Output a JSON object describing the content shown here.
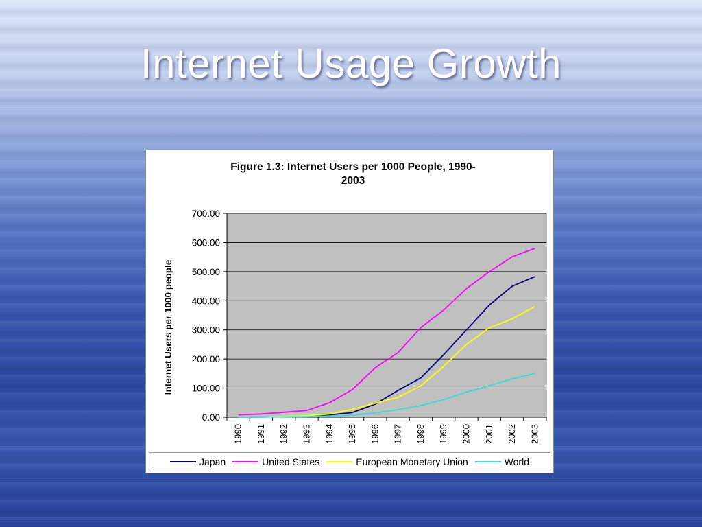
{
  "slide": {
    "title": "Internet Usage Growth"
  },
  "chart_data": {
    "type": "line",
    "title": "Figure 1.3: Internet Users per 1000 People, 1990-2003",
    "title_lines": [
      "Figure 1.3: Internet Users per 1000 People, 1990-",
      "2003"
    ],
    "xlabel": "",
    "ylabel": "Internet Users per 1000 people",
    "x": [
      "1990",
      "1991",
      "1992",
      "1993",
      "1994",
      "1995",
      "1996",
      "1997",
      "1998",
      "1999",
      "2000",
      "2001",
      "2002",
      "2003"
    ],
    "ylim": [
      0,
      700
    ],
    "yticks": [
      0,
      100,
      200,
      300,
      400,
      500,
      600,
      700
    ],
    "ytick_labels": [
      "0.00",
      "100.00",
      "200.00",
      "300.00",
      "400.00",
      "500.00",
      "600.00",
      "700.00"
    ],
    "grid": true,
    "plot_background": "#c0c0c0",
    "legend_position": "bottom",
    "series": [
      {
        "name": "Japan",
        "color": "#000080",
        "values": [
          0.2,
          0.6,
          1.5,
          3,
          8,
          16,
          45,
          92,
          135,
          215,
          300,
          385,
          450,
          483
        ]
      },
      {
        "name": "United States",
        "color": "#ff00ff",
        "values": [
          8,
          11,
          17,
          23,
          50,
          95,
          170,
          222,
          308,
          368,
          442,
          500,
          551,
          580
        ]
      },
      {
        "name": "European Monetary Union",
        "color": "#ffff00",
        "values": [
          0.5,
          1,
          3,
          5,
          11,
          27,
          48,
          68,
          108,
          175,
          250,
          307,
          338,
          380
        ]
      },
      {
        "name": "World",
        "color": "#33dddd",
        "values": [
          0.3,
          0.6,
          1.2,
          2,
          4,
          7,
          15,
          26,
          40,
          60,
          86,
          108,
          132,
          150
        ]
      }
    ]
  }
}
